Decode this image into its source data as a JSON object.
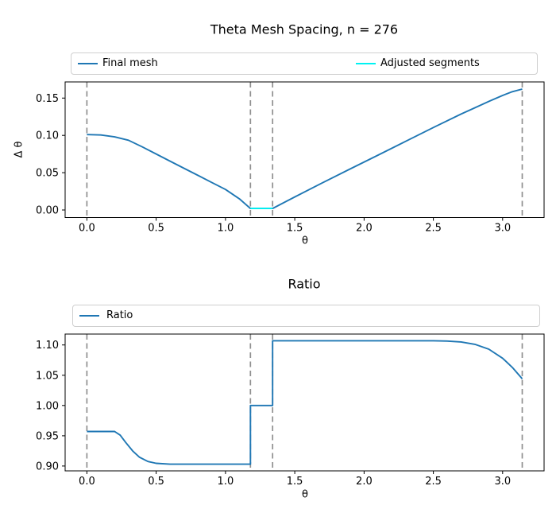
{
  "figure": {
    "background": "#ffffff",
    "text_color": "#000000",
    "frame_color": "#000000"
  },
  "chart_data": [
    {
      "type": "line",
      "title": "Theta Mesh Spacing, n = 276",
      "xlabel": "θ",
      "ylabel": "Δ θ",
      "xlim": [
        -0.157,
        3.299
      ],
      "ylim": [
        -0.0101,
        0.1716
      ],
      "grid": false,
      "legend": {
        "position": "top-expand",
        "entries": [
          "Final mesh",
          "Adjusted segments"
        ]
      },
      "xticks": {
        "values": [
          0,
          0.5,
          1.0,
          1.5,
          2.0,
          2.5,
          3.0
        ],
        "labels": [
          "0.0",
          "0.5",
          "1.0",
          "1.5",
          "2.0",
          "2.5",
          "3.0"
        ]
      },
      "yticks": {
        "values": [
          0.0,
          0.05,
          0.1,
          0.15
        ],
        "labels": [
          "0.00",
          "0.05",
          "0.10",
          "0.15"
        ]
      },
      "vlines": {
        "x": [
          0,
          1.18,
          1.34,
          3.1416
        ],
        "color": "#8f8f8f",
        "style": "dashed"
      },
      "series": [
        {
          "name": "Final mesh",
          "color": "#1f77b4",
          "x": [
            0,
            0.1,
            0.2,
            0.3,
            0.4,
            0.5,
            0.6,
            0.7,
            0.8,
            0.9,
            1.0,
            1.1,
            1.18,
            1.34,
            1.5,
            1.7,
            1.9,
            2.1,
            2.3,
            2.5,
            2.7,
            2.8,
            2.9,
            3.0,
            3.07,
            3.1416
          ],
          "y": [
            0.101,
            0.1005,
            0.098,
            0.0935,
            0.0845,
            0.075,
            0.0655,
            0.056,
            0.0465,
            0.037,
            0.0275,
            0.015,
            0.002,
            0.002,
            0.0175,
            0.0365,
            0.055,
            0.0735,
            0.092,
            0.1105,
            0.1285,
            0.137,
            0.1455,
            0.1535,
            0.1585,
            0.162
          ]
        },
        {
          "name": "Adjusted segments",
          "color": "#00f2f2",
          "x": [
            1.18,
            1.34
          ],
          "y": [
            0.002,
            0.002
          ]
        }
      ]
    },
    {
      "type": "line",
      "title": "Ratio",
      "xlabel": "θ",
      "ylabel": "",
      "xlim": [
        -0.157,
        3.299
      ],
      "ylim": [
        0.892,
        1.118
      ],
      "grid": false,
      "legend": {
        "position": "top-expand",
        "entries": [
          "Ratio"
        ]
      },
      "xticks": {
        "values": [
          0,
          0.5,
          1.0,
          1.5,
          2.0,
          2.5,
          3.0
        ],
        "labels": [
          "0.0",
          "0.5",
          "1.0",
          "1.5",
          "2.0",
          "2.5",
          "3.0"
        ]
      },
      "yticks": {
        "values": [
          0.9,
          0.95,
          1.0,
          1.05,
          1.1
        ],
        "labels": [
          "0.90",
          "0.95",
          "1.00",
          "1.05",
          "1.10"
        ]
      },
      "vlines": {
        "x": [
          0,
          1.18,
          1.34,
          3.1416
        ],
        "color": "#8f8f8f",
        "style": "dashed"
      },
      "series": [
        {
          "name": "Ratio",
          "color": "#1f77b4",
          "x": [
            0,
            0.2,
            0.24,
            0.28,
            0.33,
            0.38,
            0.44,
            0.5,
            0.6,
            0.8,
            1.18,
            1.18,
            1.34,
            1.34,
            1.5,
            2.0,
            2.5,
            2.6,
            2.7,
            2.8,
            2.9,
            3.0,
            3.07,
            3.1416
          ],
          "y": [
            0.957,
            0.957,
            0.951,
            0.939,
            0.925,
            0.9145,
            0.9075,
            0.9045,
            0.903,
            0.903,
            0.903,
            1.0,
            1.0,
            1.107,
            1.107,
            1.107,
            1.107,
            1.1065,
            1.105,
            1.101,
            1.093,
            1.078,
            1.063,
            1.044
          ]
        }
      ]
    }
  ]
}
